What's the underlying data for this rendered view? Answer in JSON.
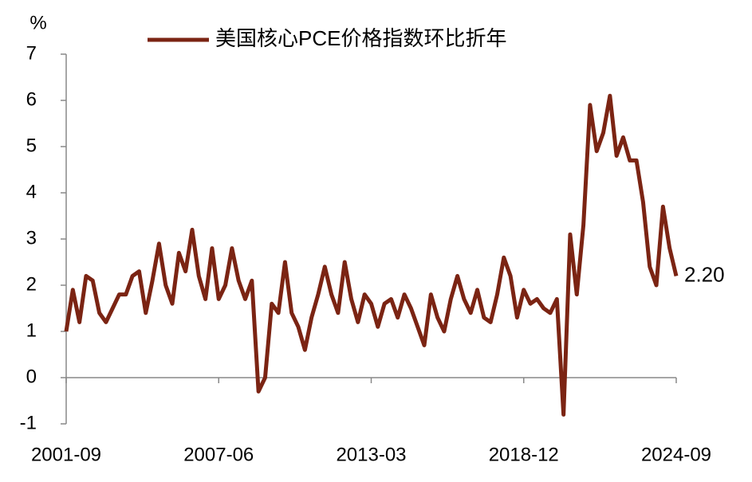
{
  "chart_data": {
    "type": "line",
    "y_label": "%",
    "categories": [
      "2001-09",
      null,
      null,
      null,
      null,
      null,
      null,
      null,
      null,
      null,
      null,
      null,
      null,
      null,
      null,
      null,
      null,
      null,
      null,
      null,
      null,
      null,
      null,
      "2007-06",
      null,
      null,
      null,
      null,
      null,
      null,
      null,
      null,
      null,
      null,
      null,
      null,
      null,
      null,
      null,
      null,
      null,
      null,
      null,
      null,
      null,
      null,
      "2013-03",
      null,
      null,
      null,
      null,
      null,
      null,
      null,
      null,
      null,
      null,
      null,
      null,
      null,
      null,
      null,
      null,
      null,
      null,
      null,
      null,
      null,
      null,
      "2018-12",
      null,
      null,
      null,
      null,
      null,
      null,
      null,
      null,
      null,
      null,
      null,
      null,
      null,
      null,
      null,
      null,
      null,
      null,
      null,
      null,
      null,
      null,
      "2024-09"
    ],
    "series": [
      {
        "name": "美国核心PCE价格指数环比折年",
        "color": "#7b2413",
        "values": [
          1.0,
          1.9,
          1.2,
          2.2,
          2.1,
          1.4,
          1.2,
          1.5,
          1.8,
          1.8,
          2.2,
          2.3,
          1.4,
          2.1,
          2.9,
          2.0,
          1.6,
          2.7,
          2.3,
          3.2,
          2.2,
          1.7,
          2.8,
          1.7,
          2.0,
          2.8,
          2.1,
          1.7,
          2.1,
          -0.3,
          0.0,
          1.6,
          1.4,
          2.5,
          1.4,
          1.1,
          0.6,
          1.3,
          1.8,
          2.4,
          1.8,
          1.4,
          2.5,
          1.7,
          1.2,
          1.8,
          1.6,
          1.1,
          1.6,
          1.7,
          1.3,
          1.8,
          1.5,
          1.1,
          0.7,
          1.8,
          1.3,
          1.0,
          1.7,
          2.2,
          1.7,
          1.4,
          1.9,
          1.3,
          1.2,
          1.8,
          2.6,
          2.2,
          1.3,
          1.9,
          1.6,
          1.7,
          1.5,
          1.4,
          1.7,
          -0.8,
          3.1,
          1.8,
          3.3,
          5.9,
          4.9,
          5.3,
          6.1,
          4.8,
          5.2,
          4.7,
          4.7,
          3.8,
          2.4,
          2.0,
          3.7,
          2.8,
          2.2
        ],
        "value_labels": [
          null,
          null,
          null,
          null,
          null,
          null,
          null,
          null,
          null,
          null,
          null,
          null,
          null,
          null,
          null,
          null,
          null,
          null,
          null,
          null,
          null,
          null,
          null,
          null,
          null,
          null,
          null,
          null,
          null,
          null,
          null,
          null,
          null,
          null,
          null,
          null,
          null,
          null,
          null,
          null,
          null,
          null,
          null,
          null,
          null,
          null,
          null,
          null,
          null,
          null,
          null,
          null,
          null,
          null,
          null,
          null,
          null,
          null,
          null,
          null,
          null,
          null,
          null,
          null,
          null,
          null,
          null,
          null,
          null,
          null,
          null,
          null,
          null,
          null,
          null,
          null,
          null,
          null,
          null,
          null,
          null,
          null,
          null,
          null,
          null,
          null,
          null,
          null,
          null,
          null,
          null,
          null,
          "2.20"
        ]
      }
    ],
    "ylim": [
      -1,
      7
    ],
    "yticks": [
      -1,
      0,
      1,
      2,
      3,
      4,
      5,
      6,
      7
    ]
  }
}
